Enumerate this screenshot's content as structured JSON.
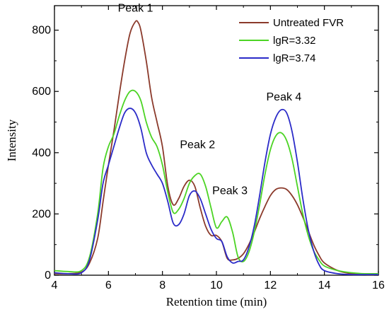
{
  "chart_data": {
    "type": "line",
    "xlabel": "Retention time (min)",
    "ylabel": "Intensity",
    "xlim": [
      4,
      16
    ],
    "ylim": [
      0,
      880
    ],
    "xticks": [
      4,
      6,
      8,
      10,
      12,
      14,
      16
    ],
    "yticks": [
      0,
      200,
      400,
      600,
      800
    ],
    "legend_position": "top-right",
    "grid": false,
    "annotations": [
      {
        "text": "Peak 1",
        "x": 7.0,
        "y": 860
      },
      {
        "text": "Peak 2",
        "x": 9.3,
        "y": 415
      },
      {
        "text": "Peak 3",
        "x": 10.5,
        "y": 265
      },
      {
        "text": "Peak 4",
        "x": 12.5,
        "y": 570
      }
    ],
    "series": [
      {
        "name": "Untreated FVR",
        "color": "#8B3A2B",
        "x": [
          4.0,
          4.5,
          5.0,
          5.3,
          5.6,
          5.8,
          6.0,
          6.2,
          6.4,
          6.6,
          6.8,
          7.0,
          7.1,
          7.2,
          7.4,
          7.6,
          7.8,
          8.0,
          8.2,
          8.4,
          8.6,
          8.8,
          9.0,
          9.2,
          9.4,
          9.6,
          9.8,
          10.0,
          10.2,
          10.4,
          10.6,
          10.8,
          11.0,
          11.2,
          11.4,
          11.6,
          11.8,
          12.0,
          12.2,
          12.4,
          12.6,
          12.8,
          13.0,
          13.2,
          13.4,
          13.6,
          13.8,
          14.0,
          14.5,
          15.0,
          15.5,
          16.0
        ],
        "y": [
          5,
          5,
          10,
          40,
          120,
          240,
          360,
          470,
          590,
          700,
          790,
          828,
          825,
          800,
          700,
          580,
          500,
          420,
          290,
          230,
          250,
          290,
          310,
          290,
          220,
          160,
          130,
          130,
          110,
          55,
          50,
          55,
          70,
          100,
          140,
          185,
          225,
          260,
          280,
          285,
          280,
          260,
          230,
          190,
          145,
          100,
          65,
          40,
          15,
          5,
          2,
          2
        ]
      },
      {
        "name": "lgR=3.32",
        "color": "#4CD424",
        "x": [
          4.0,
          4.5,
          5.0,
          5.3,
          5.6,
          5.8,
          6.0,
          6.2,
          6.4,
          6.6,
          6.8,
          7.0,
          7.2,
          7.4,
          7.6,
          7.8,
          8.0,
          8.2,
          8.4,
          8.6,
          8.8,
          9.0,
          9.2,
          9.4,
          9.6,
          9.8,
          10.0,
          10.2,
          10.4,
          10.6,
          10.8,
          11.0,
          11.2,
          11.4,
          11.6,
          11.8,
          12.0,
          12.2,
          12.4,
          12.6,
          12.8,
          13.0,
          13.2,
          13.4,
          13.6,
          13.8,
          14.0,
          14.5,
          15.0,
          15.5,
          16.0
        ],
        "y": [
          15,
          12,
          15,
          60,
          200,
          350,
          420,
          460,
          520,
          570,
          600,
          600,
          570,
          500,
          450,
          420,
          360,
          270,
          205,
          215,
          250,
          300,
          325,
          330,
          290,
          220,
          155,
          175,
          190,
          140,
          60,
          45,
          75,
          140,
          230,
          330,
          410,
          455,
          465,
          440,
          380,
          290,
          200,
          130,
          80,
          50,
          30,
          15,
          8,
          5,
          5
        ]
      },
      {
        "name": "lgR=3.74",
        "color": "#2B2BC8",
        "x": [
          4.0,
          4.5,
          5.0,
          5.3,
          5.6,
          5.8,
          6.0,
          6.2,
          6.4,
          6.6,
          6.8,
          7.0,
          7.2,
          7.4,
          7.6,
          7.8,
          8.0,
          8.2,
          8.4,
          8.6,
          8.8,
          9.0,
          9.2,
          9.4,
          9.6,
          9.8,
          10.0,
          10.2,
          10.4,
          10.6,
          10.8,
          11.0,
          11.2,
          11.4,
          11.6,
          11.8,
          12.0,
          12.2,
          12.4,
          12.6,
          12.8,
          13.0,
          13.2,
          13.4,
          13.6,
          13.8,
          14.0,
          14.5,
          15.0,
          15.5,
          16.0
        ],
        "y": [
          8,
          5,
          8,
          50,
          180,
          300,
          360,
          420,
          480,
          530,
          545,
          530,
          480,
          400,
          360,
          330,
          300,
          240,
          170,
          165,
          200,
          260,
          275,
          250,
          200,
          150,
          120,
          110,
          60,
          40,
          45,
          50,
          90,
          160,
          260,
          370,
          460,
          515,
          540,
          530,
          470,
          370,
          250,
          150,
          80,
          35,
          15,
          5,
          2,
          2,
          2
        ]
      }
    ]
  }
}
